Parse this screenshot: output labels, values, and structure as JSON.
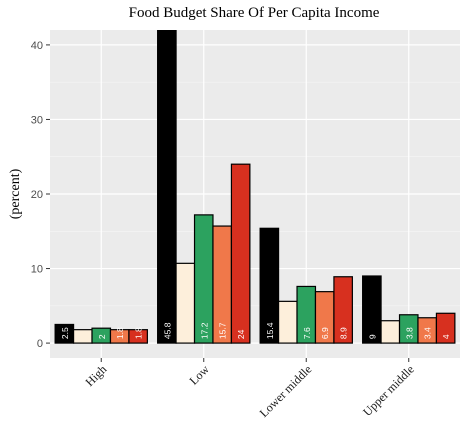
{
  "chart_data": {
    "type": "bar",
    "title": "Food Budget Share Of Per Capita Income",
    "xlabel": "",
    "ylabel": "(percent)",
    "categories": [
      "High",
      "Low",
      "Lower middle",
      "Upper middle"
    ],
    "series_colors": [
      "#000000",
      "#fdefdb",
      "#2ca25f",
      "#f0784a",
      "#d7301f"
    ],
    "label_colors": [
      "#ffffff",
      "#ffffff",
      "#ffffff",
      "#ffffff",
      "#ffffff"
    ],
    "series": [
      {
        "values": [
          2.5,
          45.8,
          15.4,
          9
        ]
      },
      {
        "values": [
          1.8,
          10.7,
          5.6,
          3.0
        ]
      },
      {
        "values": [
          2,
          17.2,
          7.6,
          3.8
        ]
      },
      {
        "values": [
          1.8,
          15.7,
          6.9,
          3.4
        ]
      },
      {
        "values": [
          1.8,
          24,
          8.9,
          4
        ]
      }
    ],
    "data_labels": [
      [
        "2.5",
        "45.8",
        "15.4",
        "9"
      ],
      [
        "",
        "",
        "",
        ""
      ],
      [
        "2",
        "17.2",
        "7.6",
        "3.8"
      ],
      [
        "1.8",
        "15.7",
        "6.9",
        "3.4"
      ],
      [
        "1.8",
        "24",
        "8.9",
        "4"
      ]
    ],
    "ylim": [
      -2,
      42
    ],
    "yticks": [
      0,
      10,
      20,
      30,
      40
    ],
    "ytick_labels": [
      "0",
      "10",
      "20",
      "30",
      "40"
    ],
    "grid": true,
    "legend": "none"
  }
}
